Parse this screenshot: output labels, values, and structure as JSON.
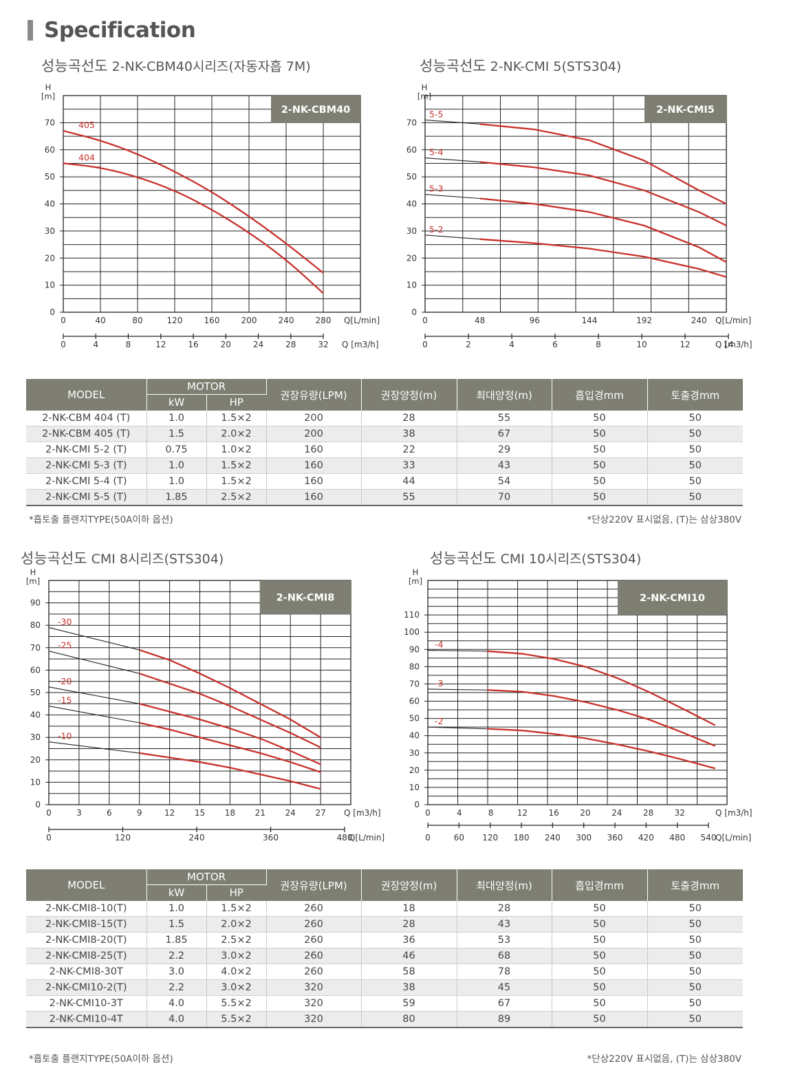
{
  "section_title": "Specification",
  "chart_data": [
    {
      "type": "line",
      "title_ko": "성능곡선도",
      "title_rest": "2-NK-CBM40시리즈(자동자흡 7M)",
      "badge": "2-NK-CBM40",
      "ylabel": "H",
      "yunit": "[m]",
      "ylim": [
        0,
        80
      ],
      "yticks": [
        0,
        10,
        20,
        30,
        40,
        50,
        60,
        70
      ],
      "xlabel": "Q[L/min]",
      "xlim": [
        0,
        320
      ],
      "xticks": [
        0,
        40,
        80,
        120,
        160,
        200,
        240,
        280
      ],
      "x2label": "Q [m3/h]",
      "x2ticks": [
        "0",
        "4",
        "8",
        "12",
        "16",
        "20",
        "24",
        "28",
        "32"
      ],
      "series": [
        {
          "name": "405",
          "x": [
            0,
            40,
            80,
            120,
            160,
            200,
            240,
            280
          ],
          "y": [
            67,
            63.5,
            58.5,
            52,
            44.5,
            35.5,
            25.5,
            14.5
          ]
        },
        {
          "name": "404",
          "x": [
            0,
            40,
            80,
            120,
            160,
            200,
            240,
            280
          ],
          "y": [
            55,
            53.5,
            50,
            45,
            38,
            29.5,
            19.5,
            7
          ]
        }
      ]
    },
    {
      "type": "line",
      "title_ko": "성능곡선도",
      "title_rest": "2-NK-CMI 5(STS304)",
      "badge": "2-NK-CMI5",
      "ylabel": "H",
      "yunit": "[m]",
      "ylim": [
        0,
        80
      ],
      "yticks": [
        0,
        10,
        20,
        30,
        40,
        50,
        60,
        70
      ],
      "xlabel": "Q[L/min]",
      "xlim": [
        0,
        264
      ],
      "xticks": [
        48,
        96,
        144,
        192,
        240
      ],
      "xticks_shown": [
        "0",
        "48",
        "96",
        "144",
        "192",
        "240"
      ],
      "x2label": "Q [m3/h]",
      "x2ticks": [
        "0",
        "2",
        "4",
        "6",
        "8",
        "10",
        "12",
        "14"
      ],
      "series": [
        {
          "name": "5-5",
          "x": [
            0,
            48,
            96,
            144,
            192,
            240,
            264
          ],
          "y": [
            71,
            69.5,
            67.5,
            63.5,
            56,
            45,
            40
          ]
        },
        {
          "name": "5-4",
          "x": [
            0,
            48,
            96,
            144,
            192,
            240,
            264
          ],
          "y": [
            57,
            55.5,
            53.5,
            50.5,
            45,
            37,
            32
          ]
        },
        {
          "name": "5-3",
          "x": [
            0,
            48,
            96,
            144,
            192,
            240,
            264
          ],
          "y": [
            43.5,
            42,
            40,
            37,
            32,
            24,
            18.5
          ]
        },
        {
          "name": "5-2",
          "x": [
            0,
            48,
            96,
            144,
            192,
            240,
            264
          ],
          "y": [
            28.5,
            27,
            25.5,
            23.5,
            20.5,
            16,
            13
          ]
        }
      ]
    },
    {
      "type": "line",
      "title_ko": "성능곡선도",
      "title_rest": "CMI 8시리즈(STS304)",
      "badge": "2-NK-CMI8",
      "ylabel": "H",
      "yunit": "[m]",
      "ylim": [
        0,
        100
      ],
      "yticks": [
        0,
        10,
        20,
        30,
        40,
        50,
        60,
        70,
        80,
        90
      ],
      "xlabel": "Q [m3/h]",
      "xlim": [
        0,
        30
      ],
      "xticks": [
        0,
        3,
        6,
        9,
        12,
        15,
        18,
        21,
        24,
        27
      ],
      "x2label": "Q[L/min]",
      "x2ticks": [
        "0",
        "120",
        "240",
        "360",
        "480"
      ],
      "series": [
        {
          "name": "-30",
          "x": [
            0,
            9,
            12,
            15,
            18,
            21,
            24,
            27
          ],
          "y": [
            79,
            69,
            64.5,
            58.5,
            52,
            45,
            38,
            30
          ]
        },
        {
          "name": "-25",
          "x": [
            0,
            9,
            12,
            15,
            18,
            21,
            24,
            27
          ],
          "y": [
            68.5,
            58.5,
            54,
            49.5,
            44,
            38,
            32,
            25.5
          ]
        },
        {
          "name": "-20",
          "x": [
            0,
            9,
            12,
            15,
            18,
            21,
            24,
            27
          ],
          "y": [
            52.5,
            45,
            41.5,
            38,
            34,
            29.5,
            24,
            18
          ]
        },
        {
          "name": "-15",
          "x": [
            0,
            9,
            12,
            15,
            18,
            21,
            24,
            27
          ],
          "y": [
            44,
            36.5,
            33.5,
            30,
            26.5,
            23,
            19,
            14.5
          ]
        },
        {
          "name": "-10",
          "x": [
            0,
            9,
            12,
            15,
            18,
            21,
            24,
            27
          ],
          "y": [
            28,
            23,
            21,
            19,
            16.5,
            13.5,
            10.5,
            7
          ]
        }
      ]
    },
    {
      "type": "line",
      "title_ko": "성능곡선도",
      "title_rest": "CMI 10시리즈(STS304)",
      "badge": "2-NK-CMI10",
      "ylabel": "H",
      "yunit": "[m]",
      "ylim": [
        0,
        130
      ],
      "yticks": [
        0,
        10,
        20,
        30,
        40,
        50,
        60,
        70,
        80,
        90,
        100,
        110
      ],
      "xlabel": "Q [m3/h]",
      "xlim": [
        0,
        38
      ],
      "xticks": [
        0,
        4,
        8,
        12,
        16,
        20,
        24,
        28,
        32
      ],
      "x2label": "Q[L/min]",
      "x2ticks": [
        "0",
        "60",
        "120",
        "180",
        "240",
        "300",
        "360",
        "420",
        "480",
        "540"
      ],
      "series": [
        {
          "name": "-4",
          "x": [
            0,
            7.5,
            12,
            16,
            20,
            24,
            28,
            32,
            36.5
          ],
          "y": [
            89.5,
            89,
            87.5,
            84.5,
            80,
            73.5,
            65.5,
            56.5,
            46
          ]
        },
        {
          "name": "-3",
          "x": [
            0,
            7.5,
            12,
            16,
            20,
            24,
            28,
            32,
            36.5
          ],
          "y": [
            67,
            66.5,
            65.5,
            63,
            59.5,
            55,
            49.5,
            42.5,
            34
          ]
        },
        {
          "name": "-2",
          "x": [
            0,
            7.5,
            12,
            16,
            20,
            24,
            28,
            32,
            36.5
          ],
          "y": [
            45,
            44,
            43,
            41,
            38.5,
            35,
            31,
            26.5,
            21
          ]
        }
      ]
    }
  ],
  "table_headers": {
    "model": "MODEL",
    "motor": "MOTOR",
    "kw": "kW",
    "hp": "HP",
    "flow": "권장유량(LPM)",
    "head": "권장양정(m)",
    "max_head": "최대양정(m)",
    "suction": "흡입경mm",
    "discharge": "토출경mm"
  },
  "table1": [
    [
      "2-NK-CBM 404 (T)",
      "1.0",
      "1.5×2",
      "200",
      "28",
      "55",
      "50",
      "50"
    ],
    [
      "2-NK-CBM 405 (T)",
      "1.5",
      "2.0×2",
      "200",
      "38",
      "67",
      "50",
      "50"
    ],
    [
      "2-NK-CMI 5-2 (T)",
      "0.75",
      "1.0×2",
      "160",
      "22",
      "29",
      "50",
      "50"
    ],
    [
      "2-NK-CMI 5-3 (T)",
      "1.0",
      "1.5×2",
      "160",
      "33",
      "43",
      "50",
      "50"
    ],
    [
      "2-NK-CMI 5-4 (T)",
      "1.0",
      "1.5×2",
      "160",
      "44",
      "54",
      "50",
      "50"
    ],
    [
      "2-NK-CMI 5-5 (T)",
      "1.85",
      "2.5×2",
      "160",
      "55",
      "70",
      "50",
      "50"
    ]
  ],
  "table2": [
    [
      "2-NK-CMI8-10(T)",
      "1.0",
      "1.5×2",
      "260",
      "18",
      "28",
      "50",
      "50"
    ],
    [
      "2-NK-CMI8-15(T)",
      "1.5",
      "2.0×2",
      "260",
      "28",
      "43",
      "50",
      "50"
    ],
    [
      "2-NK-CMI8-20(T)",
      "1.85",
      "2.5×2",
      "260",
      "36",
      "53",
      "50",
      "50"
    ],
    [
      "2-NK-CMI8-25(T)",
      "2.2",
      "3.0×2",
      "260",
      "46",
      "68",
      "50",
      "50"
    ],
    [
      "2-NK-CMI8-30T",
      "3.0",
      "4.0×2",
      "260",
      "58",
      "78",
      "50",
      "50"
    ],
    [
      "2-NK-CMI10-2(T)",
      "2.2",
      "3.0×2",
      "320",
      "38",
      "45",
      "50",
      "50"
    ],
    [
      "2-NK-CMI10-3T",
      "4.0",
      "5.5×2",
      "320",
      "59",
      "67",
      "50",
      "50"
    ],
    [
      "2-NK-CMI10-4T",
      "4.0",
      "5.5×2",
      "320",
      "80",
      "89",
      "50",
      "50"
    ]
  ],
  "notes": {
    "left": "*흡토출 플랜지TYPE(50A이하 옵션)",
    "right": "*단상220V 표시없음, (T)는 삼상380V"
  },
  "colors": {
    "curve": "#c8302a",
    "badge": "#7e7f72",
    "grid": "#222222",
    "thin": "#333333"
  }
}
